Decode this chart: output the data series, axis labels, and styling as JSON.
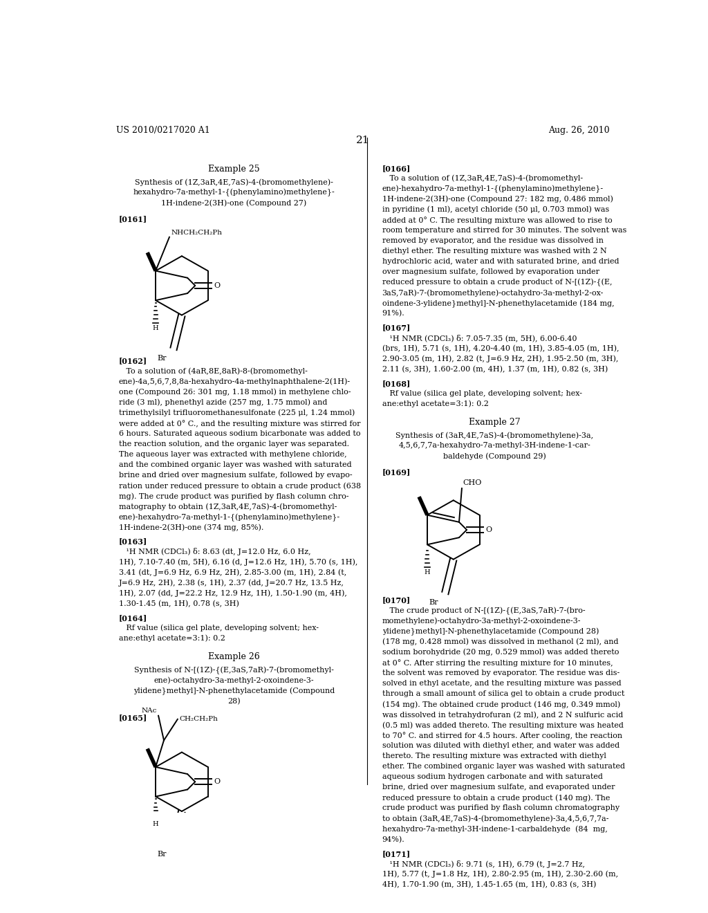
{
  "bg_color": "#ffffff",
  "header_left": "US 2010/0217020 A1",
  "header_right": "Aug. 26, 2010",
  "page_number": "21"
}
